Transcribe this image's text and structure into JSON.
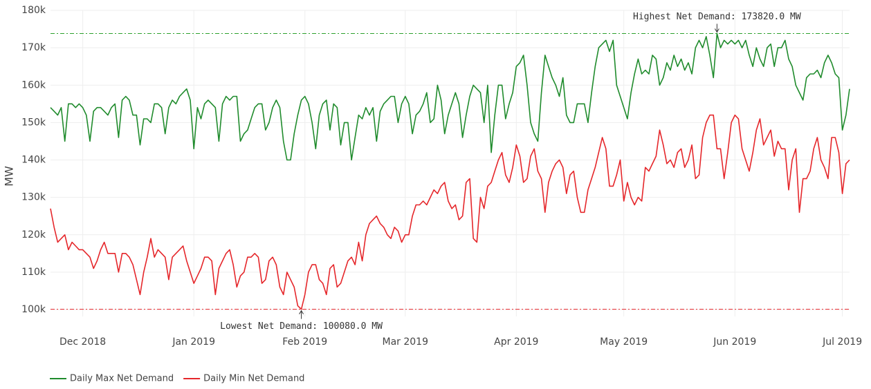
{
  "chart_data": {
    "type": "line",
    "y_label": "MW",
    "ylim": [
      100000,
      180000
    ],
    "yticks": [
      {
        "value": 100000,
        "label": "100k"
      },
      {
        "value": 110000,
        "label": "110k"
      },
      {
        "value": 120000,
        "label": "120k"
      },
      {
        "value": 130000,
        "label": "130k"
      },
      {
        "value": 140000,
        "label": "140k"
      },
      {
        "value": 150000,
        "label": "150k"
      },
      {
        "value": 160000,
        "label": "160k"
      },
      {
        "value": 170000,
        "label": "170k"
      },
      {
        "value": 180000,
        "label": "180k"
      }
    ],
    "xlim": [
      "2018-11-22",
      "2019-07-03"
    ],
    "xticks": [
      {
        "value": "2018-12-01",
        "label": "Dec 2018"
      },
      {
        "value": "2019-01-01",
        "label": "Jan 2019"
      },
      {
        "value": "2019-02-01",
        "label": "Feb 2019"
      },
      {
        "value": "2019-03-01",
        "label": "Mar 2019"
      },
      {
        "value": "2019-04-01",
        "label": "Apr 2019"
      },
      {
        "value": "2019-05-01",
        "label": "May 2019"
      },
      {
        "value": "2019-06-01",
        "label": "Jun 2019"
      },
      {
        "value": "2019-07-01",
        "label": "Jul 2019"
      }
    ],
    "grid": true,
    "legend": "bottom-left",
    "x": [
      "2018-11-22",
      "2018-11-23",
      "2018-11-24",
      "2018-11-25",
      "2018-11-26",
      "2018-11-27",
      "2018-11-28",
      "2018-11-29",
      "2018-11-30",
      "2018-12-01",
      "2018-12-02",
      "2018-12-03",
      "2018-12-04",
      "2018-12-05",
      "2018-12-06",
      "2018-12-07",
      "2018-12-08",
      "2018-12-09",
      "2018-12-10",
      "2018-12-11",
      "2018-12-12",
      "2018-12-13",
      "2018-12-14",
      "2018-12-15",
      "2018-12-16",
      "2018-12-17",
      "2018-12-18",
      "2018-12-19",
      "2018-12-20",
      "2018-12-21",
      "2018-12-22",
      "2018-12-23",
      "2018-12-24",
      "2018-12-25",
      "2018-12-26",
      "2018-12-27",
      "2018-12-28",
      "2018-12-29",
      "2018-12-30",
      "2018-12-31",
      "2019-01-01",
      "2019-01-02",
      "2019-01-03",
      "2019-01-04",
      "2019-01-05",
      "2019-01-06",
      "2019-01-07",
      "2019-01-08",
      "2019-01-09",
      "2019-01-10",
      "2019-01-11",
      "2019-01-12",
      "2019-01-13",
      "2019-01-14",
      "2019-01-15",
      "2019-01-16",
      "2019-01-17",
      "2019-01-18",
      "2019-01-19",
      "2019-01-20",
      "2019-01-21",
      "2019-01-22",
      "2019-01-23",
      "2019-01-24",
      "2019-01-25",
      "2019-01-26",
      "2019-01-27",
      "2019-01-28",
      "2019-01-29",
      "2019-01-30",
      "2019-01-31",
      "2019-02-01",
      "2019-02-02",
      "2019-02-03",
      "2019-02-04",
      "2019-02-05",
      "2019-02-06",
      "2019-02-07",
      "2019-02-08",
      "2019-02-09",
      "2019-02-10",
      "2019-02-11",
      "2019-02-12",
      "2019-02-13",
      "2019-02-14",
      "2019-02-15",
      "2019-02-16",
      "2019-02-17",
      "2019-02-18",
      "2019-02-19",
      "2019-02-20",
      "2019-02-21",
      "2019-02-22",
      "2019-02-23",
      "2019-02-24",
      "2019-02-25",
      "2019-02-26",
      "2019-02-27",
      "2019-02-28",
      "2019-03-01",
      "2019-03-02",
      "2019-03-03",
      "2019-03-04",
      "2019-03-05",
      "2019-03-06",
      "2019-03-07",
      "2019-03-08",
      "2019-03-09",
      "2019-03-10",
      "2019-03-11",
      "2019-03-12",
      "2019-03-13",
      "2019-03-14",
      "2019-03-15",
      "2019-03-16",
      "2019-03-17",
      "2019-03-18",
      "2019-03-19",
      "2019-03-20",
      "2019-03-21",
      "2019-03-22",
      "2019-03-23",
      "2019-03-24",
      "2019-03-25",
      "2019-03-26",
      "2019-03-27",
      "2019-03-28",
      "2019-03-29",
      "2019-03-30",
      "2019-03-31",
      "2019-04-01",
      "2019-04-02",
      "2019-04-03",
      "2019-04-04",
      "2019-04-05",
      "2019-04-06",
      "2019-04-07",
      "2019-04-08",
      "2019-04-09",
      "2019-04-10",
      "2019-04-11",
      "2019-04-12",
      "2019-04-13",
      "2019-04-14",
      "2019-04-15",
      "2019-04-16",
      "2019-04-17",
      "2019-04-18",
      "2019-04-19",
      "2019-04-20",
      "2019-04-21",
      "2019-04-22",
      "2019-04-23",
      "2019-04-24",
      "2019-04-25",
      "2019-04-26",
      "2019-04-27",
      "2019-04-28",
      "2019-04-29",
      "2019-04-30",
      "2019-05-01",
      "2019-05-02",
      "2019-05-03",
      "2019-05-04",
      "2019-05-05",
      "2019-05-06",
      "2019-05-07",
      "2019-05-08",
      "2019-05-09",
      "2019-05-10",
      "2019-05-11",
      "2019-05-12",
      "2019-05-13",
      "2019-05-14",
      "2019-05-15",
      "2019-05-16",
      "2019-05-17",
      "2019-05-18",
      "2019-05-19",
      "2019-05-20",
      "2019-05-21",
      "2019-05-22",
      "2019-05-23",
      "2019-05-24",
      "2019-05-25",
      "2019-05-26",
      "2019-05-27",
      "2019-05-28",
      "2019-05-29",
      "2019-05-30",
      "2019-05-31",
      "2019-06-01",
      "2019-06-02",
      "2019-06-03",
      "2019-06-04",
      "2019-06-05",
      "2019-06-06",
      "2019-06-07",
      "2019-06-08",
      "2019-06-09",
      "2019-06-10",
      "2019-06-11",
      "2019-06-12",
      "2019-06-13",
      "2019-06-14",
      "2019-06-15",
      "2019-06-16",
      "2019-06-17",
      "2019-06-18",
      "2019-06-19",
      "2019-06-20",
      "2019-06-21",
      "2019-06-22",
      "2019-06-23",
      "2019-06-24",
      "2019-06-25",
      "2019-06-26",
      "2019-06-27",
      "2019-06-28",
      "2019-06-29",
      "2019-06-30",
      "2019-07-01",
      "2019-07-02",
      "2019-07-03"
    ],
    "series": [
      {
        "name": "Daily Max Net Demand",
        "color": "#1f8b2c",
        "values": [
          154000,
          153000,
          152000,
          154000,
          145000,
          155000,
          155000,
          154000,
          155000,
          154000,
          152000,
          145000,
          153000,
          154000,
          154000,
          153000,
          152000,
          154000,
          155000,
          146000,
          156000,
          157000,
          156000,
          152000,
          152000,
          144000,
          151000,
          151000,
          150000,
          155000,
          155000,
          154000,
          147000,
          154000,
          156000,
          155000,
          157000,
          158000,
          159000,
          156000,
          143000,
          154000,
          151000,
          155000,
          156000,
          155000,
          154000,
          145000,
          155000,
          157000,
          156000,
          157000,
          157000,
          145000,
          147000,
          148000,
          151000,
          154000,
          155000,
          155000,
          148000,
          150000,
          154000,
          156000,
          154000,
          145000,
          140000,
          140000,
          147000,
          152000,
          156000,
          157000,
          155000,
          150000,
          143000,
          152000,
          155000,
          156000,
          148000,
          155000,
          154000,
          144000,
          150000,
          150000,
          140000,
          146000,
          152000,
          151000,
          154000,
          152000,
          154000,
          145000,
          153000,
          155000,
          156000,
          157000,
          157000,
          150000,
          155000,
          157000,
          155000,
          147000,
          152000,
          153000,
          155000,
          158000,
          150000,
          151000,
          160000,
          156000,
          147000,
          152000,
          155000,
          158000,
          155000,
          146000,
          152000,
          157000,
          160000,
          159000,
          158000,
          150000,
          160000,
          142000,
          152000,
          160000,
          160000,
          151000,
          155000,
          158000,
          165000,
          166000,
          168000,
          160000,
          150000,
          147000,
          145000,
          158000,
          168000,
          165000,
          162000,
          160000,
          157000,
          162000,
          152000,
          150000,
          150000,
          155000,
          155000,
          155000,
          150000,
          158000,
          165000,
          170000,
          171000,
          172000,
          169000,
          172000,
          160000,
          157000,
          154000,
          151000,
          158000,
          163000,
          167000,
          163000,
          164000,
          163000,
          168000,
          167000,
          160000,
          162000,
          166000,
          164000,
          168000,
          165000,
          167000,
          164000,
          166000,
          163000,
          170000,
          172000,
          170000,
          173000,
          168000,
          162000,
          173820,
          170000,
          172000,
          171000,
          172000,
          171000,
          172000,
          170000,
          172000,
          168000,
          165000,
          170000,
          167000,
          165000,
          170000,
          171000,
          165000,
          170000,
          170000,
          172000,
          167000,
          165000,
          160000,
          158000,
          156000,
          162000,
          163000,
          163000,
          164000,
          162000,
          166000,
          168000,
          166000,
          163000,
          162000,
          148000,
          152000,
          159000
        ]
      },
      {
        "name": "Daily Min Net Demand",
        "color": "#e5262a",
        "values": [
          127000,
          122000,
          118000,
          119000,
          120000,
          116000,
          118000,
          117000,
          116000,
          116000,
          115000,
          114000,
          111000,
          113000,
          116000,
          118000,
          115000,
          115000,
          115000,
          110000,
          115000,
          115000,
          114000,
          112000,
          108000,
          104000,
          110000,
          114000,
          119000,
          114000,
          116000,
          115000,
          114000,
          108000,
          114000,
          115000,
          116000,
          117000,
          113000,
          110000,
          107000,
          109000,
          111000,
          114000,
          114000,
          113000,
          104000,
          111000,
          113000,
          115000,
          116000,
          112000,
          106000,
          109000,
          110000,
          114000,
          114000,
          115000,
          114000,
          107000,
          108000,
          113000,
          114000,
          112000,
          106000,
          104000,
          110000,
          108000,
          106000,
          101000,
          100080,
          104000,
          110000,
          112000,
          112000,
          108000,
          107000,
          104000,
          111000,
          112000,
          106000,
          107000,
          110000,
          113000,
          114000,
          112000,
          118000,
          113000,
          120000,
          123000,
          124000,
          125000,
          123000,
          122000,
          120000,
          119000,
          122000,
          121000,
          118000,
          120000,
          120000,
          125000,
          128000,
          128000,
          129000,
          128000,
          130000,
          132000,
          131000,
          133000,
          134000,
          129000,
          127000,
          128000,
          124000,
          125000,
          134000,
          135000,
          119000,
          118000,
          130000,
          127000,
          133000,
          134000,
          137000,
          140000,
          142000,
          136000,
          134000,
          138000,
          144000,
          141000,
          134000,
          135000,
          141000,
          143000,
          137000,
          135000,
          126000,
          134000,
          137000,
          139000,
          140000,
          138000,
          131000,
          136000,
          137000,
          130000,
          126000,
          126000,
          132000,
          135000,
          138000,
          142000,
          146000,
          143000,
          133000,
          133000,
          136000,
          140000,
          129000,
          134000,
          130000,
          128000,
          130000,
          129000,
          138000,
          137000,
          139000,
          141000,
          148000,
          144000,
          139000,
          140000,
          138000,
          142000,
          143000,
          138000,
          140000,
          144000,
          135000,
          136000,
          146000,
          150000,
          152000,
          152000,
          143000,
          143000,
          135000,
          142000,
          150000,
          152000,
          151000,
          143000,
          140000,
          137000,
          142000,
          148000,
          151000,
          144000,
          146000,
          148000,
          141000,
          145000,
          143000,
          143000,
          132000,
          140000,
          143000,
          126000,
          135000,
          135000,
          137000,
          143000,
          146000,
          140000,
          138000,
          135000,
          146000,
          146000,
          142000,
          131000,
          139000,
          140000
        ]
      }
    ],
    "reference_lines": [
      {
        "value": 173820,
        "color": "#2ca02c"
      },
      {
        "value": 100080,
        "color": "#e5262a"
      }
    ],
    "annotations": [
      {
        "text": "Highest Net Demand: 173820.0 MW",
        "x": "2019-05-27",
        "y": 173820,
        "position": "above"
      },
      {
        "text": "Lowest Net Demand: 100080.0 MW",
        "x": "2019-01-31",
        "y": 100080,
        "position": "below"
      }
    ]
  }
}
